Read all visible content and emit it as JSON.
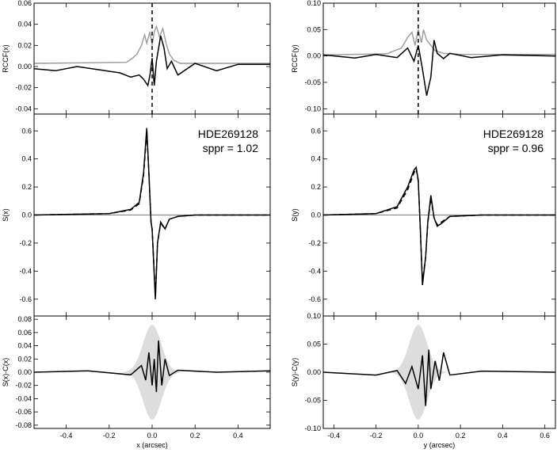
{
  "figure": {
    "columns": [
      {
        "axis": "x",
        "panels": [
          {
            "id": "rccf",
            "ylabel": "RCCF(x)",
            "ylim": [
              -0.045,
              0.06
            ],
            "yticks": [
              "0.06",
              "0.04",
              "0.02",
              "0.00",
              "-0.02",
              "-0.04"
            ],
            "ytick_values": [
              0.06,
              0.04,
              0.02,
              0.0,
              -0.02,
              -0.04
            ],
            "dashed_vline_at": 0.0
          },
          {
            "id": "signal",
            "ylabel": "S(x)",
            "ylim": [
              -0.72,
              0.72
            ],
            "yticks": [
              "0.6",
              "0.4",
              "0.2",
              "0.0",
              "-0.2",
              "-0.4",
              "-0.6"
            ],
            "ytick_values": [
              0.6,
              0.4,
              0.2,
              0.0,
              -0.2,
              -0.4,
              -0.6
            ],
            "annotation": [
              "HDE269128",
              "sppr = 1.02"
            ]
          },
          {
            "id": "residual",
            "ylabel": "S(x)-C(x)",
            "ylim": [
              -0.085,
              0.085
            ],
            "yticks": [
              "0.08",
              "0.06",
              "0.04",
              "0.02",
              "0.00",
              "-0.02",
              "-0.04",
              "-0.06",
              "-0.08"
            ],
            "ytick_values": [
              0.08,
              0.06,
              0.04,
              0.02,
              0.0,
              -0.02,
              -0.04,
              -0.06,
              -0.08
            ]
          }
        ],
        "xlim": [
          -0.55,
          0.55
        ],
        "xticks": [
          "-0.4",
          "-0.2",
          "0.0",
          "0.2",
          "0.4"
        ],
        "xtick_values": [
          -0.4,
          -0.2,
          0.0,
          0.2,
          0.4
        ],
        "xlabel": "x (arcsec)"
      },
      {
        "axis": "y",
        "panels": [
          {
            "id": "rccf",
            "ylabel": "RCCF(y)",
            "ylim": [
              -0.11,
              0.1
            ],
            "yticks": [
              "0.10",
              "0.05",
              "0.00",
              "-0.05",
              "-0.10"
            ],
            "ytick_values": [
              0.1,
              0.05,
              0.0,
              -0.05,
              -0.1
            ],
            "dashed_vline_at": 0.0
          },
          {
            "id": "signal",
            "ylabel": "S(y)",
            "ylim": [
              -0.72,
              0.72
            ],
            "yticks": [
              "0.6",
              "0.4",
              "0.2",
              "0.0",
              "-0.2",
              "-0.4",
              "-0.6"
            ],
            "ytick_values": [
              0.6,
              0.4,
              0.2,
              0.0,
              -0.2,
              -0.4,
              -0.6
            ],
            "annotation": [
              "HDE269128",
              "sppr = 0.96"
            ]
          },
          {
            "id": "residual",
            "ylabel": "S(y)-C(y)",
            "ylim": [
              -0.1,
              0.1
            ],
            "yticks": [
              "0.10",
              "0.05",
              "0.00",
              "-0.05",
              "-0.10"
            ],
            "ytick_values": [
              0.1,
              0.05,
              0.0,
              -0.05,
              -0.1
            ]
          }
        ],
        "xlim": [
          -0.45,
          0.65
        ],
        "xticks": [
          "-0.4",
          "-0.2",
          "0.0",
          "0.2",
          "0.4",
          "0.6"
        ],
        "xtick_values": [
          -0.4,
          -0.2,
          0.0,
          0.2,
          0.4,
          0.6
        ],
        "xlabel": "y (arcsec)"
      }
    ]
  },
  "chart_data": [
    {
      "type": "line",
      "ylabel": "RCCF(x)",
      "series": [
        {
          "color": "#999999",
          "x": [
            -0.55,
            -0.12,
            -0.09,
            -0.07,
            -0.05,
            -0.035,
            -0.025,
            -0.01,
            0.0,
            0.01,
            0.02,
            0.035,
            0.05,
            0.065,
            0.08,
            0.1,
            0.13,
            0.55
          ],
          "values": [
            0.003,
            0.004,
            0.008,
            0.012,
            0.02,
            0.03,
            0.022,
            0.033,
            0.02,
            0.033,
            0.038,
            0.028,
            0.036,
            0.022,
            0.012,
            0.006,
            0.003,
            0.003
          ]
        },
        {
          "color": "#000000",
          "x": [
            -0.55,
            -0.45,
            -0.35,
            -0.25,
            -0.15,
            -0.1,
            -0.06,
            -0.04,
            -0.02,
            -0.01,
            0.0,
            0.01,
            0.02,
            0.04,
            0.055,
            0.07,
            0.09,
            0.12,
            0.2,
            0.3,
            0.4,
            0.55
          ],
          "values": [
            -0.002,
            -0.004,
            0.0,
            -0.003,
            -0.006,
            -0.01,
            -0.008,
            -0.012,
            -0.018,
            -0.008,
            0.008,
            -0.018,
            0.005,
            0.029,
            0.018,
            -0.002,
            0.005,
            -0.008,
            0.003,
            -0.004,
            0.002,
            0.002
          ]
        }
      ],
      "xlim": [
        -0.55,
        0.55
      ],
      "ylim": [
        -0.045,
        0.06
      ]
    },
    {
      "type": "line",
      "ylabel": "S(x)",
      "series": [
        {
          "color": "#000000",
          "style": "solid",
          "x": [
            -0.55,
            -0.2,
            -0.1,
            -0.06,
            -0.04,
            -0.025,
            -0.015,
            -0.005,
            0.0,
            0.015,
            0.025,
            0.04,
            0.06,
            0.08,
            0.12,
            0.2,
            0.55
          ],
          "values": [
            0.0,
            0.01,
            0.04,
            0.09,
            0.3,
            0.62,
            0.3,
            -0.05,
            -0.1,
            -0.6,
            -0.2,
            -0.05,
            -0.1,
            -0.03,
            -0.01,
            0.0,
            0.0
          ]
        },
        {
          "color": "#000000",
          "style": "dashed",
          "x": [
            -0.55,
            -0.2,
            -0.1,
            -0.06,
            -0.04,
            -0.025,
            -0.015,
            -0.005,
            0.0,
            0.015,
            0.025,
            0.04,
            0.06,
            0.08,
            0.12,
            0.2,
            0.55
          ],
          "values": [
            0.0,
            0.01,
            0.035,
            0.08,
            0.28,
            0.6,
            0.3,
            -0.05,
            -0.1,
            -0.58,
            -0.2,
            -0.06,
            -0.1,
            -0.03,
            -0.01,
            0.0,
            0.0
          ]
        }
      ],
      "xlim": [
        -0.55,
        0.55
      ],
      "ylim": [
        -0.72,
        0.72
      ]
    },
    {
      "type": "line",
      "ylabel": "S(x)-C(x)",
      "series": [
        {
          "color": "#000000",
          "x": [
            -0.55,
            -0.3,
            -0.1,
            -0.05,
            -0.03,
            -0.015,
            0.0,
            0.01,
            0.02,
            0.03,
            0.045,
            0.06,
            0.08,
            0.12,
            0.3,
            0.55
          ],
          "values": [
            0.0,
            0.002,
            -0.004,
            0.01,
            -0.012,
            0.03,
            -0.02,
            0.02,
            -0.03,
            0.048,
            -0.02,
            0.02,
            -0.005,
            0.003,
            0.0,
            0.002
          ]
        }
      ],
      "xlim": [
        -0.55,
        0.55
      ],
      "ylim": [
        -0.085,
        0.085
      ]
    },
    {
      "type": "line",
      "ylabel": "RCCF(y)",
      "series": [
        {
          "color": "#999999",
          "x": [
            -0.45,
            -0.15,
            -0.08,
            -0.05,
            -0.03,
            -0.015,
            0.0,
            0.015,
            0.025,
            0.04,
            0.06,
            0.08,
            0.12,
            0.2,
            0.65
          ],
          "values": [
            0.002,
            0.004,
            0.015,
            0.035,
            0.045,
            0.02,
            0.05,
            0.025,
            0.05,
            0.03,
            0.02,
            0.01,
            0.005,
            0.003,
            0.003
          ]
        },
        {
          "color": "#000000",
          "x": [
            -0.45,
            -0.3,
            -0.2,
            -0.1,
            -0.05,
            -0.02,
            0.0,
            0.02,
            0.04,
            0.06,
            0.075,
            0.09,
            0.12,
            0.15,
            0.25,
            0.4,
            0.65
          ],
          "values": [
            0.002,
            -0.004,
            0.003,
            -0.003,
            0.015,
            -0.01,
            0.02,
            -0.025,
            -0.075,
            -0.04,
            0.03,
            0.005,
            -0.005,
            0.005,
            -0.003,
            0.002,
            0.0
          ]
        }
      ],
      "xlim": [
        -0.45,
        0.65
      ],
      "ylim": [
        -0.11,
        0.1
      ]
    },
    {
      "type": "line",
      "ylabel": "S(y)",
      "series": [
        {
          "color": "#000000",
          "style": "solid",
          "x": [
            -0.45,
            -0.2,
            -0.1,
            -0.05,
            -0.02,
            -0.01,
            0.0,
            0.01,
            0.02,
            0.035,
            0.045,
            0.06,
            0.075,
            0.09,
            0.11,
            0.15,
            0.3,
            0.65
          ],
          "values": [
            0.0,
            0.01,
            0.06,
            0.2,
            0.32,
            0.34,
            0.25,
            -0.1,
            -0.5,
            -0.3,
            -0.05,
            0.14,
            -0.02,
            -0.08,
            -0.06,
            -0.01,
            0.0,
            0.0
          ]
        },
        {
          "color": "#000000",
          "style": "dashed",
          "x": [
            -0.45,
            -0.2,
            -0.1,
            -0.05,
            -0.02,
            -0.01,
            0.0,
            0.01,
            0.02,
            0.035,
            0.045,
            0.06,
            0.075,
            0.09,
            0.11,
            0.15,
            0.3,
            0.65
          ],
          "values": [
            0.0,
            0.01,
            0.05,
            0.18,
            0.3,
            0.33,
            0.24,
            -0.1,
            -0.48,
            -0.3,
            -0.06,
            0.12,
            -0.02,
            -0.07,
            -0.05,
            -0.01,
            0.0,
            0.0
          ]
        }
      ],
      "xlim": [
        -0.45,
        0.65
      ],
      "ylim": [
        -0.72,
        0.72
      ]
    },
    {
      "type": "line",
      "ylabel": "S(y)-C(y)",
      "series": [
        {
          "color": "#000000",
          "x": [
            -0.45,
            -0.2,
            -0.1,
            -0.06,
            -0.03,
            0.0,
            0.02,
            0.035,
            0.05,
            0.06,
            0.08,
            0.1,
            0.12,
            0.15,
            0.3,
            0.65
          ],
          "values": [
            0.0,
            -0.005,
            0.003,
            -0.02,
            0.01,
            -0.03,
            0.03,
            -0.06,
            0.04,
            -0.03,
            0.02,
            -0.015,
            0.035,
            -0.005,
            0.002,
            0.0
          ]
        }
      ],
      "xlim": [
        -0.45,
        0.65
      ],
      "ylim": [
        -0.1,
        0.1
      ]
    }
  ]
}
